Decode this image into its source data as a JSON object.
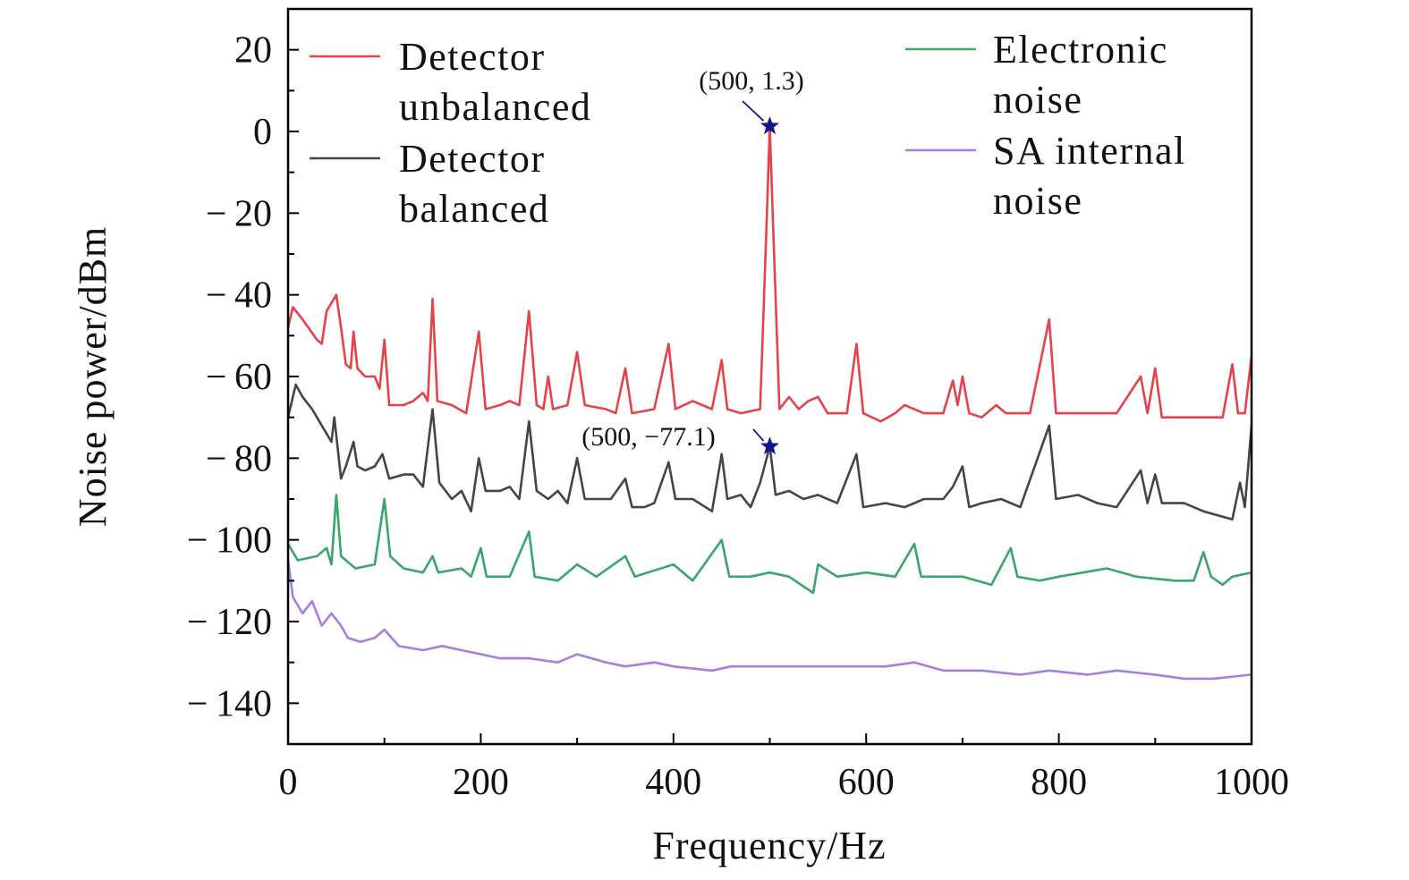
{
  "chart_data": {
    "type": "line",
    "xlabel": "Frequency/Hz",
    "ylabel": "Noise power/dBm",
    "xlim": [
      0,
      1000
    ],
    "ylim": [
      -150,
      30
    ],
    "xticks": [
      0,
      200,
      400,
      600,
      800,
      1000
    ],
    "yticks": [
      20,
      0,
      -20,
      -40,
      -60,
      -80,
      -100,
      -120,
      -140
    ],
    "grid": false,
    "legend_placement": "top",
    "series": [
      {
        "name_lines": [
          "Detector",
          "unbalanced"
        ],
        "color": "#e5424a",
        "x": [
          0,
          5,
          15,
          30,
          35,
          40,
          50,
          55,
          60,
          65,
          68,
          72,
          80,
          90,
          95,
          100,
          105,
          120,
          130,
          140,
          145,
          150,
          155,
          170,
          185,
          198,
          205,
          220,
          230,
          240,
          250,
          258,
          265,
          270,
          275,
          290,
          300,
          308,
          330,
          340,
          350,
          357,
          380,
          395,
          402,
          420,
          440,
          450,
          456,
          470,
          490,
          497,
          500,
          503,
          510,
          520,
          530,
          540,
          550,
          560,
          580,
          590,
          597,
          615,
          630,
          640,
          660,
          680,
          690,
          695,
          700,
          707,
          720,
          735,
          745,
          770,
          790,
          797,
          820,
          840,
          860,
          885,
          892,
          900,
          907,
          930,
          950,
          970,
          980,
          986,
          993,
          1000
        ],
        "y": [
          -48,
          -43,
          -46,
          -51,
          -52,
          -44,
          -40,
          -48,
          -57,
          -58,
          -49,
          -58,
          -60,
          -60,
          -63,
          -51,
          -67,
          -67,
          -66,
          -64,
          -66,
          -41,
          -66,
          -67,
          -69,
          -49,
          -68,
          -67,
          -66,
          -67,
          -44,
          -67,
          -68,
          -60,
          -68,
          -67,
          -54,
          -67,
          -68,
          -69,
          -58,
          -69,
          -68,
          -52,
          -68,
          -66,
          -68,
          -56,
          -68,
          -69,
          -68,
          -20,
          1.3,
          -20,
          -68,
          -65,
          -68,
          -66,
          -65,
          -69,
          -69,
          -52,
          -69,
          -71,
          -69,
          -67,
          -69,
          -69,
          -61,
          -67,
          -60,
          -69,
          -70,
          -67,
          -69,
          -69,
          -46,
          -69,
          -69,
          -69,
          -69,
          -60,
          -69,
          -58,
          -70,
          -70,
          -70,
          -70,
          -57,
          -69,
          -69,
          -55
        ]
      },
      {
        "name_lines": [
          "Detector",
          "balanced"
        ],
        "color": "#454545",
        "x": [
          0,
          8,
          15,
          25,
          35,
          45,
          48,
          55,
          60,
          68,
          72,
          80,
          90,
          98,
          105,
          120,
          130,
          140,
          150,
          157,
          170,
          180,
          190,
          198,
          205,
          220,
          230,
          240,
          250,
          258,
          270,
          280,
          290,
          300,
          308,
          320,
          335,
          350,
          357,
          370,
          380,
          395,
          402,
          420,
          440,
          450,
          456,
          470,
          480,
          490,
          500,
          506,
          520,
          535,
          550,
          570,
          590,
          597,
          620,
          640,
          660,
          680,
          690,
          700,
          707,
          720,
          740,
          760,
          790,
          797,
          820,
          840,
          860,
          885,
          892,
          900,
          907,
          930,
          950,
          965,
          980,
          988,
          993,
          1000
        ],
        "y": [
          -70,
          -62,
          -65,
          -68,
          -72,
          -76,
          -70,
          -85,
          -82,
          -76,
          -82,
          -83,
          -82,
          -79,
          -85,
          -84,
          -84,
          -87,
          -68,
          -86,
          -90,
          -88,
          -93,
          -80,
          -88,
          -88,
          -87,
          -90,
          -71,
          -88,
          -90,
          -88,
          -91,
          -80,
          -90,
          -90,
          -90,
          -85,
          -92,
          -92,
          -91,
          -81,
          -90,
          -90,
          -93,
          -79,
          -90,
          -89,
          -92,
          -86,
          -77.1,
          -89,
          -88,
          -90,
          -89,
          -91,
          -79,
          -92,
          -91,
          -92,
          -90,
          -90,
          -87,
          -82,
          -92,
          -91,
          -90,
          -92,
          -72,
          -90,
          -89,
          -91,
          -92,
          -83,
          -91,
          -84,
          -91,
          -91,
          -93,
          -94,
          -95,
          -86,
          -92,
          -72
        ]
      },
      {
        "name_lines": [
          "Electronic",
          "noise"
        ],
        "color": "#3aa66a",
        "x": [
          0,
          10,
          30,
          40,
          45,
          50,
          55,
          70,
          90,
          100,
          106,
          120,
          140,
          150,
          156,
          180,
          190,
          200,
          206,
          230,
          250,
          256,
          280,
          300,
          320,
          350,
          360,
          400,
          420,
          450,
          458,
          480,
          500,
          520,
          545,
          550,
          570,
          600,
          630,
          650,
          657,
          680,
          700,
          730,
          750,
          757,
          780,
          800,
          850,
          880,
          920,
          940,
          950,
          958,
          970,
          980,
          1000
        ],
        "y": [
          -101,
          -105,
          -104,
          -102,
          -106,
          -89,
          -104,
          -107,
          -106,
          -90,
          -104,
          -107,
          -108,
          -104,
          -108,
          -107,
          -109,
          -102,
          -109,
          -109,
          -98,
          -109,
          -110,
          -106,
          -109,
          -104,
          -109,
          -106,
          -110,
          -100,
          -109,
          -109,
          -108,
          -109,
          -113,
          -106,
          -109,
          -108,
          -109,
          -101,
          -109,
          -109,
          -109,
          -111,
          -102,
          -109,
          -110,
          -109,
          -107,
          -109,
          -110,
          -110,
          -103,
          -109,
          -111,
          -109,
          -108
        ]
      },
      {
        "name_lines": [
          "SA internal",
          "noise"
        ],
        "color": "#a97de0",
        "x": [
          0,
          5,
          15,
          25,
          35,
          45,
          55,
          62,
          75,
          90,
          100,
          115,
          140,
          160,
          180,
          200,
          220,
          250,
          280,
          300,
          330,
          350,
          380,
          400,
          440,
          460,
          500,
          530,
          560,
          600,
          620,
          650,
          680,
          720,
          760,
          790,
          830,
          860,
          900,
          930,
          960,
          1000
        ],
        "y": [
          -105,
          -114,
          -118,
          -115,
          -121,
          -118,
          -121,
          -124,
          -125,
          -124,
          -122,
          -126,
          -127,
          -126,
          -127,
          -128,
          -129,
          -129,
          -130,
          -128,
          -130,
          -131,
          -130,
          -131,
          -132,
          -131,
          -131,
          -131,
          -131,
          -131,
          -131,
          -130,
          -132,
          -132,
          -133,
          -132,
          -133,
          -132,
          -133,
          -134,
          -134,
          -133
        ]
      }
    ],
    "annotations": [
      {
        "text": "(500, 1.3)",
        "x": 500,
        "y": 1.3,
        "marker": "star",
        "color": "#14148c"
      },
      {
        "text": "(500, −77.1)",
        "x": 500,
        "y": -77.1,
        "marker": "star",
        "color": "#14148c"
      }
    ]
  }
}
